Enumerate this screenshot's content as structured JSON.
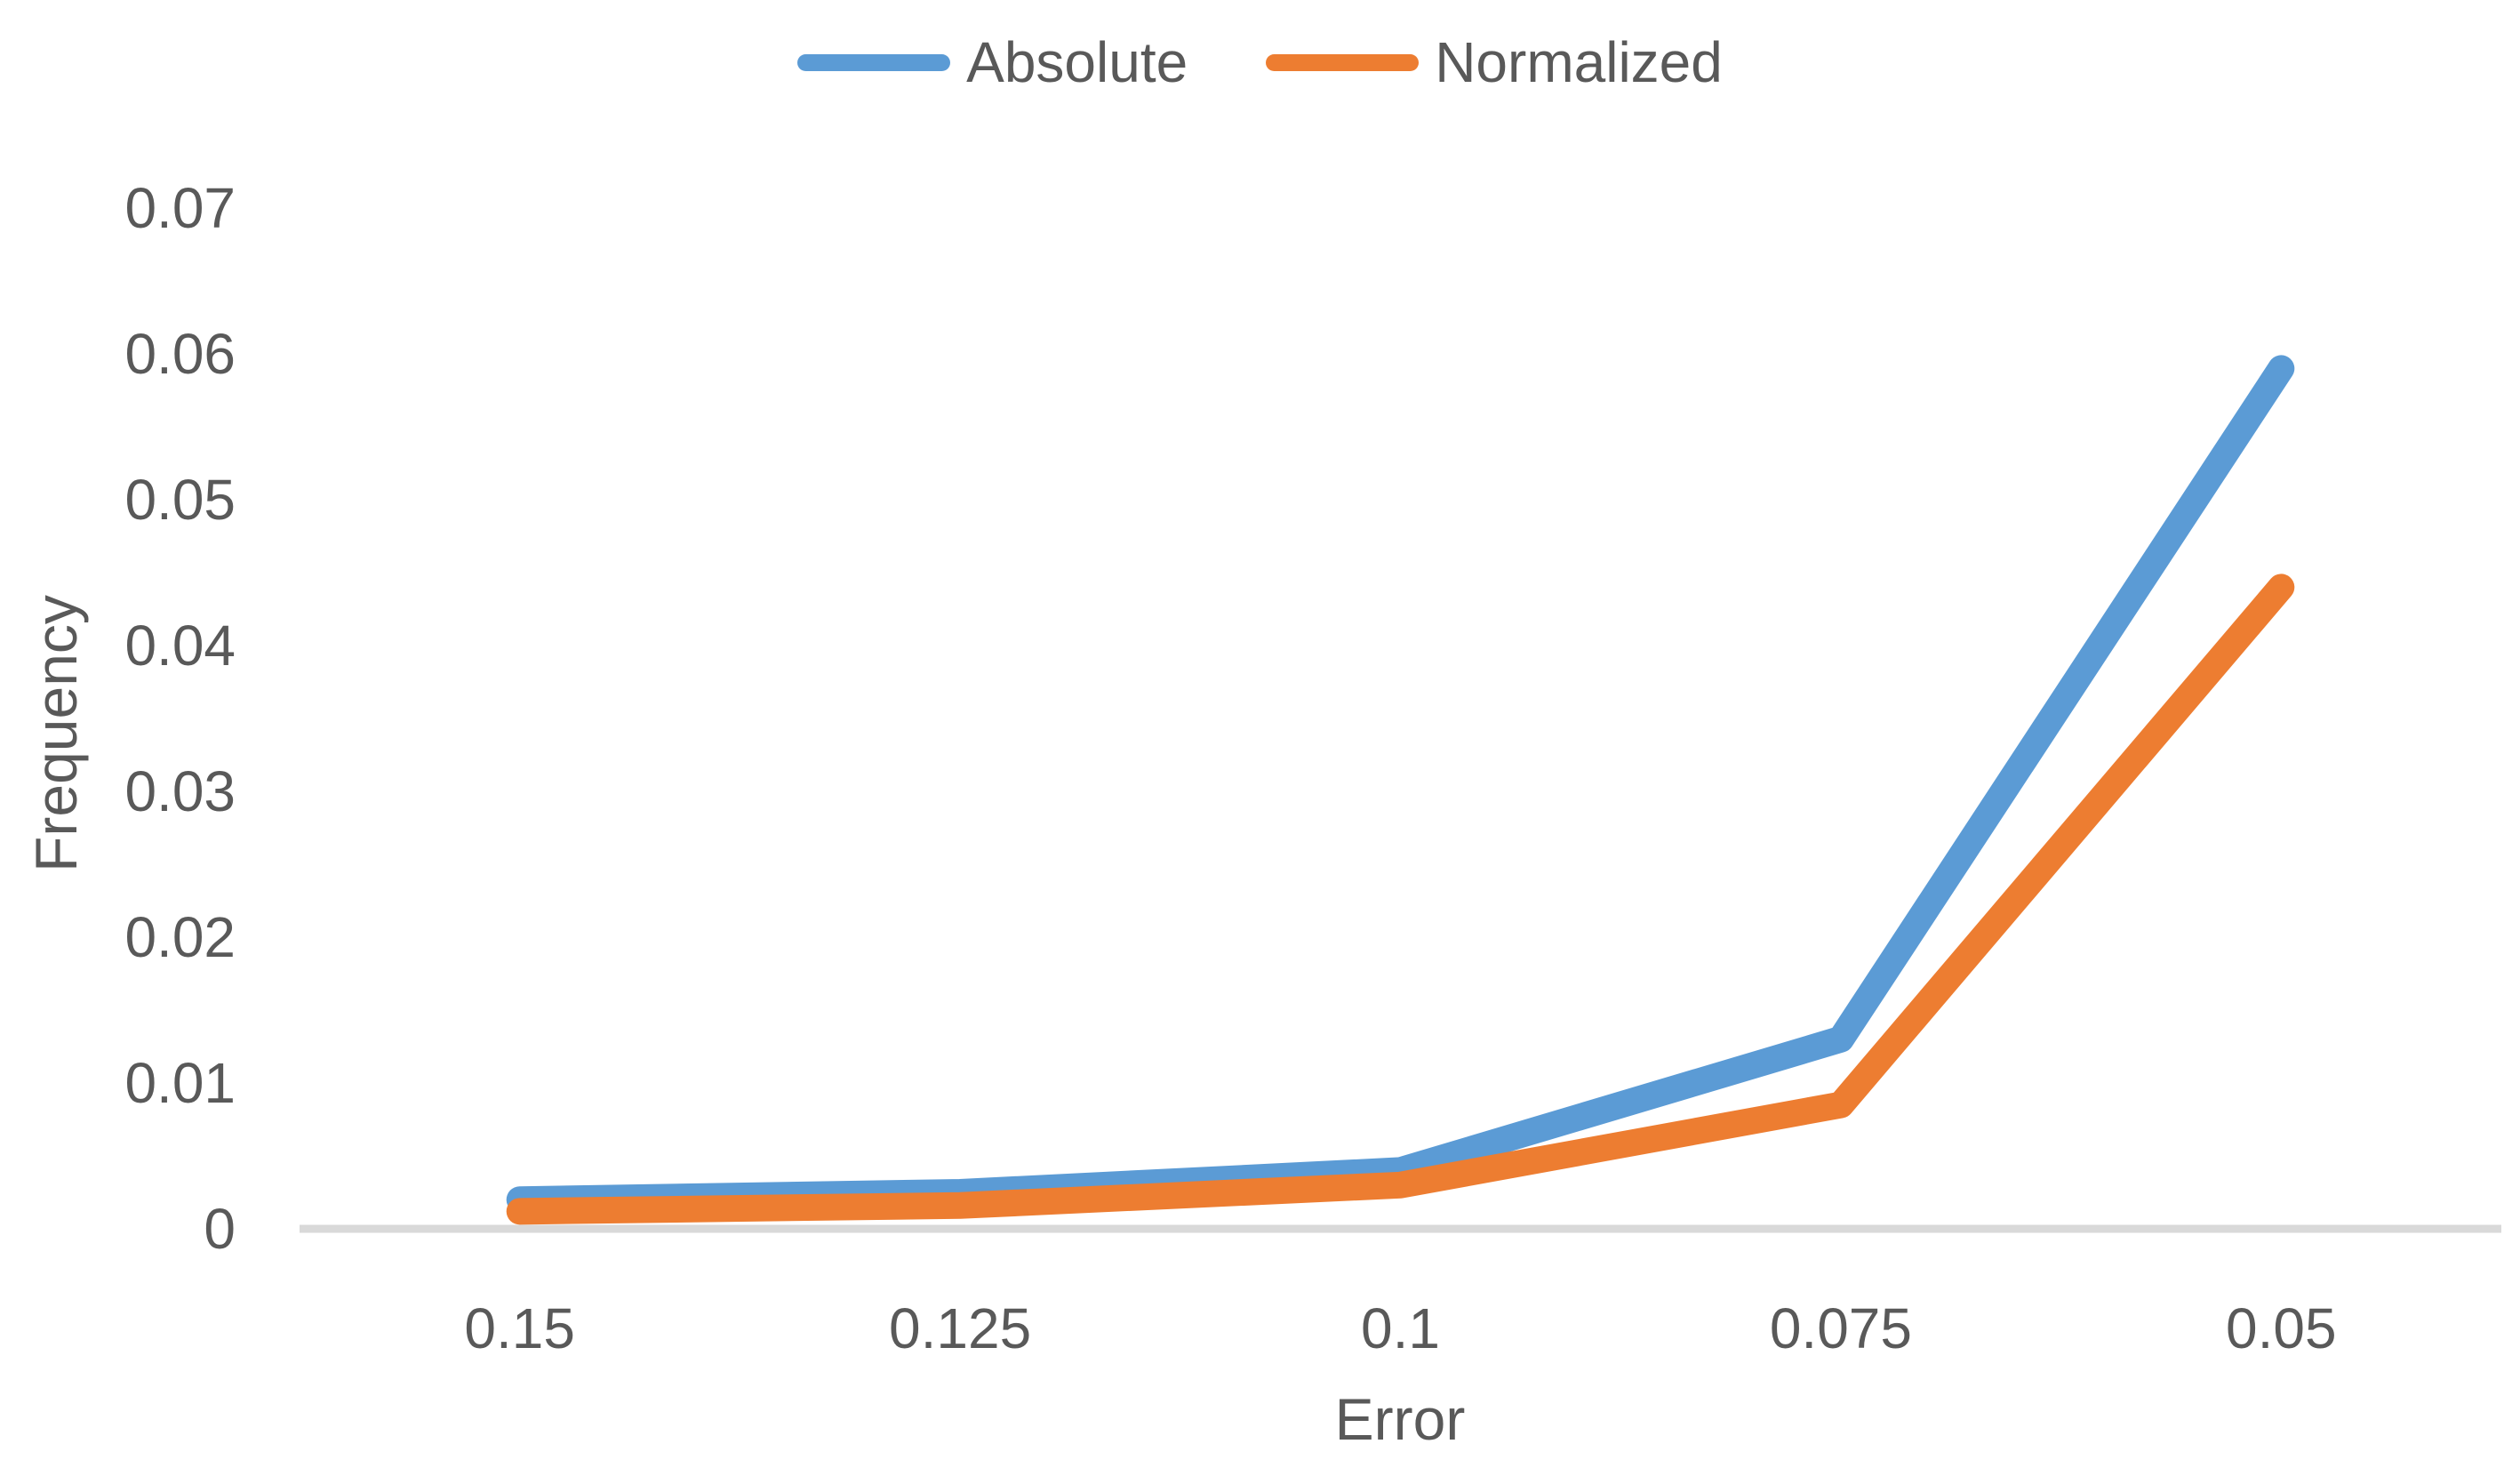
{
  "chart_data": {
    "type": "line",
    "xlabel": "Error",
    "ylabel": "Frequency",
    "categories": [
      "0.15",
      "0.125",
      "0.1",
      "0.075",
      "0.05"
    ],
    "series": [
      {
        "name": "Absolute",
        "color": "#5B9BD5",
        "values": [
          0.002,
          0.0025,
          0.004,
          0.013,
          0.059
        ]
      },
      {
        "name": "Normalized",
        "color": "#ED7D31",
        "values": [
          0.0012,
          0.0016,
          0.003,
          0.0085,
          0.044
        ]
      }
    ],
    "ylim": [
      0,
      0.07
    ],
    "yticks": [
      {
        "value": 0,
        "label": "0"
      },
      {
        "value": 0.01,
        "label": "0.01"
      },
      {
        "value": 0.02,
        "label": "0.02"
      },
      {
        "value": 0.03,
        "label": "0.03"
      },
      {
        "value": 0.04,
        "label": "0.04"
      },
      {
        "value": 0.05,
        "label": "0.05"
      },
      {
        "value": 0.06,
        "label": "0.06"
      },
      {
        "value": 0.07,
        "label": "0.07"
      }
    ],
    "grid": "baseline-only",
    "legend_position": "top",
    "colors": {
      "axis_line": "#D9D9D9",
      "text": "#595959"
    }
  }
}
